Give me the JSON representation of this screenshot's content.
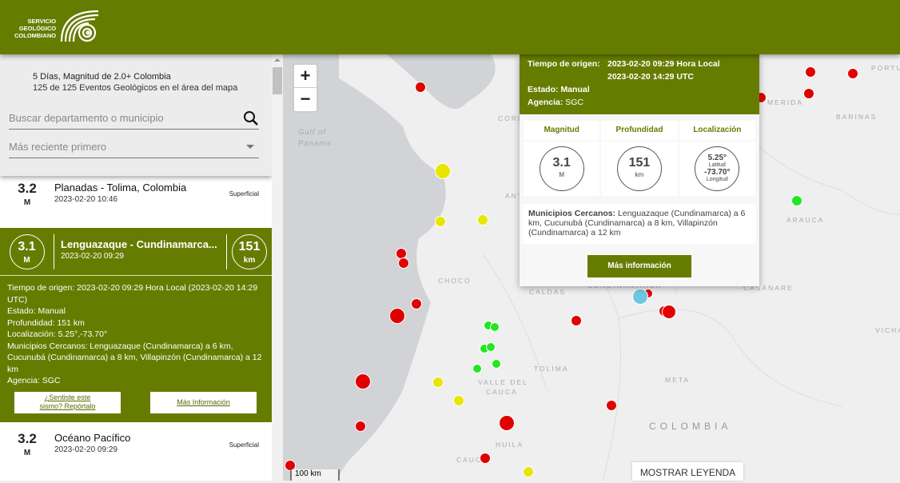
{
  "header": {
    "logo_text": [
      "SERVICIO",
      "GEOLÓGICO",
      "COLOMBIANO"
    ],
    "brand_color": "#667c00"
  },
  "filters": {
    "title": "5 Días, Magnitud de 2.0+ Colombia",
    "count": "125 de 125 Eventos Geológicos en el área del mapa",
    "search_placeholder": "Buscar departamento o municipio",
    "sort_value": "Más reciente primero"
  },
  "events": [
    {
      "mag": "3.2",
      "unit": "M",
      "name": "Planadas - Tolima, Colombia",
      "date": "2023-02-20 10:46",
      "tag": "Superficial"
    },
    {
      "mag": "3.1",
      "unit": "M",
      "name": "Lenguazaque - Cundinamarca...",
      "date": "2023-02-20 09:29",
      "depth": "151",
      "depth_unit": "km",
      "details": [
        "Tiempo de origen: 2023-02-20 09:29 Hora Local (2023-02-20 14:29 UTC)",
        "Estado: Manual",
        "Profundidad: 151 km",
        "Localización: 5.25°,-73.70°",
        "Municipios Cercanos: Lenguazaque (Cundinamarca) a 6 km, Cucunubá (Cundinamarca) a 8 km, Villapinzón (Cundinamarca) a 12 km",
        "Agencia: SGC"
      ],
      "report_label": "¿Sentiste este sismo? Repórtalo",
      "more_label": "Más Información"
    },
    {
      "mag": "3.2",
      "unit": "M",
      "name": "Océano Pacífico",
      "date": "2023-02-20 09:29",
      "tag": "Superficial"
    }
  ],
  "map": {
    "zoom_in": "+",
    "zoom_out": "−",
    "labels": [
      "Gulf of",
      "Panama",
      "CORD",
      "ANT",
      "CHOCO",
      "CALDAS",
      "CUNDINAMARCA",
      "TOLIMA",
      "VALLE DEL",
      "CAUCA",
      "META",
      "COLOMBIA",
      "HUILA",
      "CAUCA",
      "MERIDA",
      "BARINAS",
      "ARAUCA",
      "CASANARE",
      "VICHA",
      "PORTU"
    ],
    "scale": "100 km",
    "legend_button": "MOSTRAR LEYENDA",
    "marker_colors": {
      "red": "#e00000",
      "yellow": "#e6e600",
      "green": "#22e622",
      "selected": "#6ec6e0"
    }
  },
  "popup": {
    "origin_label": "Tiempo de origen:",
    "origin_local": "2023-02-20 09:29 Hora Local",
    "origin_utc": "2023-02-20 14:29 UTC",
    "status_label": "Estado:",
    "status": "Manual",
    "agency_label": "Agencia:",
    "agency": "SGC",
    "headers": [
      "Magnitud",
      "Profundidad",
      "Localización"
    ],
    "magnitude": "3.1",
    "mag_unit": "M",
    "depth": "151",
    "depth_unit": "km",
    "lat": "5.25°",
    "lat_label": "Latitud",
    "lon": "-73.70°",
    "lon_label": "Longitud",
    "nearby_label": "Municipios Cercanos:",
    "nearby": "Lenguazaque (Cundinamarca) a 6 km, Cucunubá (Cundinamarca) a 8 km, Villapinzón (Cundinamarca) a 12 km",
    "more_button": "Más información"
  }
}
